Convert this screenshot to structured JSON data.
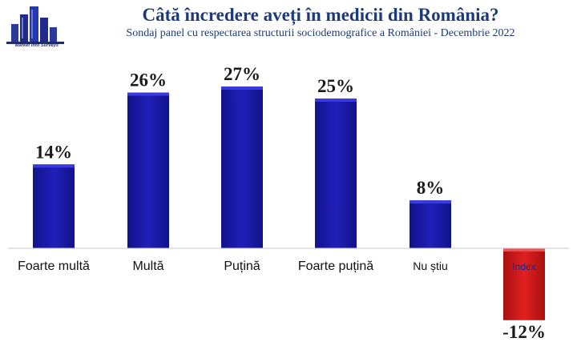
{
  "header": {
    "title": "Câtă încredere aveți în medicii din România?",
    "subtitle": "Sondaj panel cu respectarea structurii sociodemografice a României - Decembrie 2022",
    "logo_text": "Market Info Surveys"
  },
  "colors": {
    "bar_blue": "#1c1ca8",
    "bar_blue_top": "#3a3ae0",
    "bar_red": "#d01818",
    "bar_red_top": "#f05050",
    "title": "#1e3a78"
  },
  "chart_data": {
    "type": "bar",
    "title": "Câtă încredere aveți în medicii din România?",
    "subtitle": "Sondaj panel cu respectarea structurii sociodemografice a României - Decembrie 2022",
    "xlabel": "",
    "ylabel": "",
    "ylim": [
      -12,
      27
    ],
    "categories": [
      "Foarte multă",
      "Multă",
      "Puțină",
      "Foarte puțină",
      "Nu știu",
      "Index"
    ],
    "values": [
      14,
      26,
      27,
      25,
      8,
      -12
    ],
    "data_labels": [
      "14%",
      "26%",
      "27%",
      "25%",
      "8%",
      "-12%"
    ],
    "grid": false,
    "legend": false
  }
}
